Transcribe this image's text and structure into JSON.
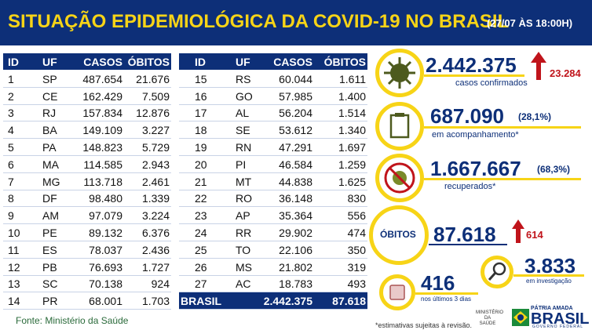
{
  "header": {
    "title": "SITUAÇÃO EPIDEMIOLÓGICA DA COVID-19 NO BRASIL",
    "date": "(27/07 ÀS 18:00H)"
  },
  "table1": {
    "columns": [
      "ID",
      "UF",
      "CASOS",
      "ÓBITOS"
    ],
    "rows": [
      [
        "1",
        "SP",
        "487.654",
        "21.676"
      ],
      [
        "2",
        "CE",
        "162.429",
        "7.509"
      ],
      [
        "3",
        "RJ",
        "157.834",
        "12.876"
      ],
      [
        "4",
        "BA",
        "149.109",
        "3.227"
      ],
      [
        "5",
        "PA",
        "148.823",
        "5.729"
      ],
      [
        "6",
        "MA",
        "114.585",
        "2.943"
      ],
      [
        "7",
        "MG",
        "113.718",
        "2.461"
      ],
      [
        "8",
        "DF",
        "98.480",
        "1.339"
      ],
      [
        "9",
        "AM",
        "97.079",
        "3.224"
      ],
      [
        "10",
        "PE",
        "89.132",
        "6.376"
      ],
      [
        "11",
        "ES",
        "78.037",
        "2.436"
      ],
      [
        "12",
        "PB",
        "76.693",
        "1.727"
      ],
      [
        "13",
        "SC",
        "70.138",
        "924"
      ],
      [
        "14",
        "PR",
        "68.001",
        "1.703"
      ]
    ]
  },
  "table2": {
    "columns": [
      "ID",
      "UF",
      "CASOS",
      "ÓBITOS"
    ],
    "rows": [
      [
        "15",
        "RS",
        "60.044",
        "1.611"
      ],
      [
        "16",
        "GO",
        "57.985",
        "1.400"
      ],
      [
        "17",
        "AL",
        "56.204",
        "1.514"
      ],
      [
        "18",
        "SE",
        "53.612",
        "1.340"
      ],
      [
        "19",
        "RN",
        "47.291",
        "1.697"
      ],
      [
        "20",
        "PI",
        "46.584",
        "1.259"
      ],
      [
        "21",
        "MT",
        "44.838",
        "1.625"
      ],
      [
        "22",
        "RO",
        "36.148",
        "830"
      ],
      [
        "23",
        "AP",
        "35.364",
        "556"
      ],
      [
        "24",
        "RR",
        "29.902",
        "474"
      ],
      [
        "25",
        "TO",
        "22.106",
        "350"
      ],
      [
        "26",
        "MS",
        "21.802",
        "319"
      ],
      [
        "27",
        "AC",
        "18.783",
        "493"
      ]
    ],
    "total": [
      "BRASIL",
      "2.442.375",
      "87.618"
    ]
  },
  "stats": {
    "confirmed": {
      "value": "2.442.375",
      "label": "casos confirmados",
      "delta": "23.284"
    },
    "monitoring": {
      "value": "687.090",
      "percent": "(28,1%)",
      "label": "em acompanhamento*"
    },
    "recovered": {
      "value": "1.667.667",
      "percent": "(68,3%)",
      "label": "recuperados*"
    },
    "deaths": {
      "label": "ÓBITOS",
      "value": "87.618",
      "delta": "614"
    },
    "investigation": {
      "value": "3.833",
      "label": "em investigação"
    },
    "recent": {
      "value": "416",
      "label": "nos últimos 3 dias"
    }
  },
  "footer": {
    "source": "Fonte: Ministério da Saúde",
    "note": "*estimativas sujeitas à revisão.",
    "ministry": "MINISTÉRIO DA SAÚDE",
    "slogan": "PÁTRIA AMADA",
    "country": "BRASIL",
    "government": "GOVERNO FEDERAL"
  }
}
